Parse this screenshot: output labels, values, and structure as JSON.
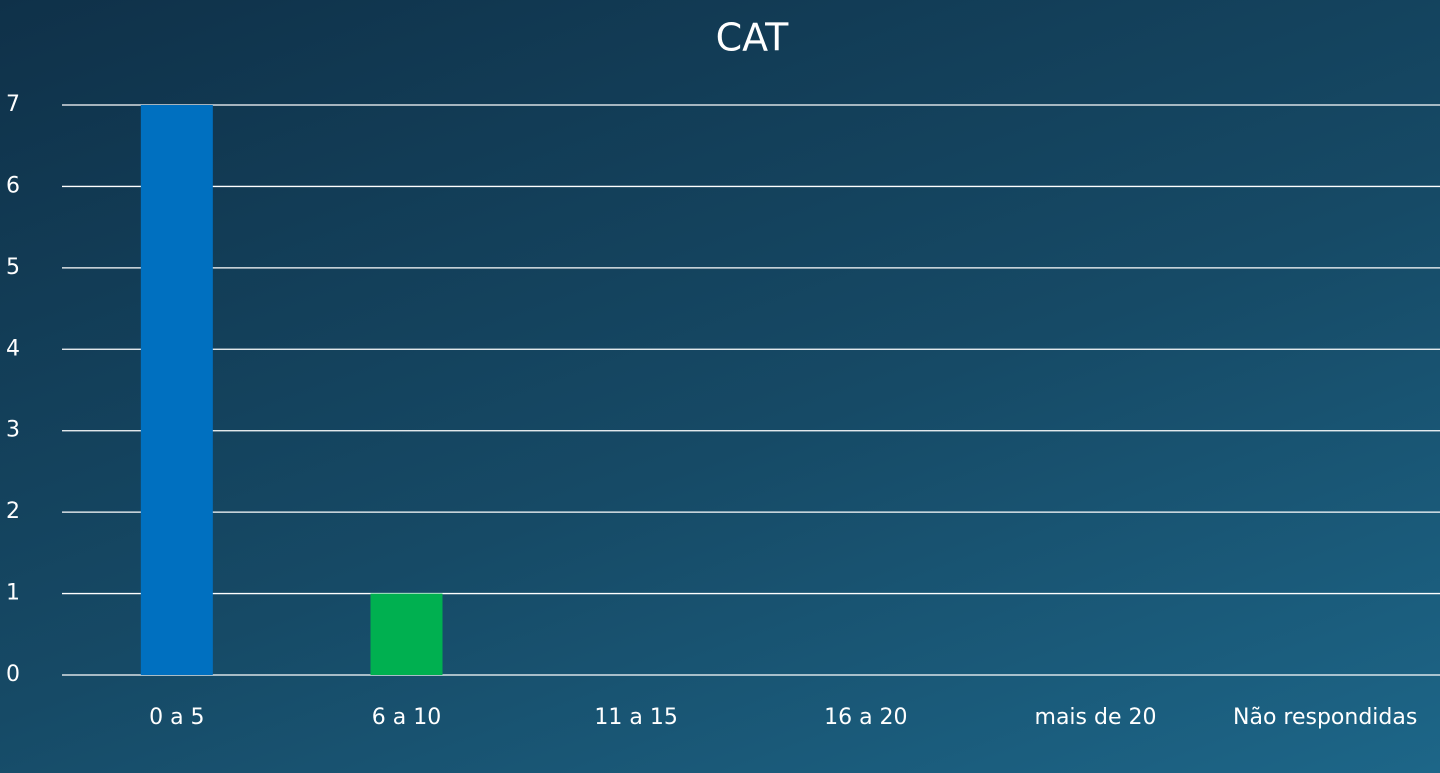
{
  "chart_data": {
    "type": "bar",
    "title": "CAT",
    "categories": [
      "0 a 5",
      "6 a 10",
      "11 a 15",
      "16 a 20",
      "mais de 20",
      "Não respondidas"
    ],
    "values": [
      7,
      1,
      0,
      0,
      0,
      0
    ],
    "colors": [
      "#0070c0",
      "#00b050"
    ],
    "ylim": [
      0,
      7
    ],
    "yticks": [
      0,
      1,
      2,
      3,
      4,
      5,
      6,
      7
    ],
    "grid": true
  }
}
